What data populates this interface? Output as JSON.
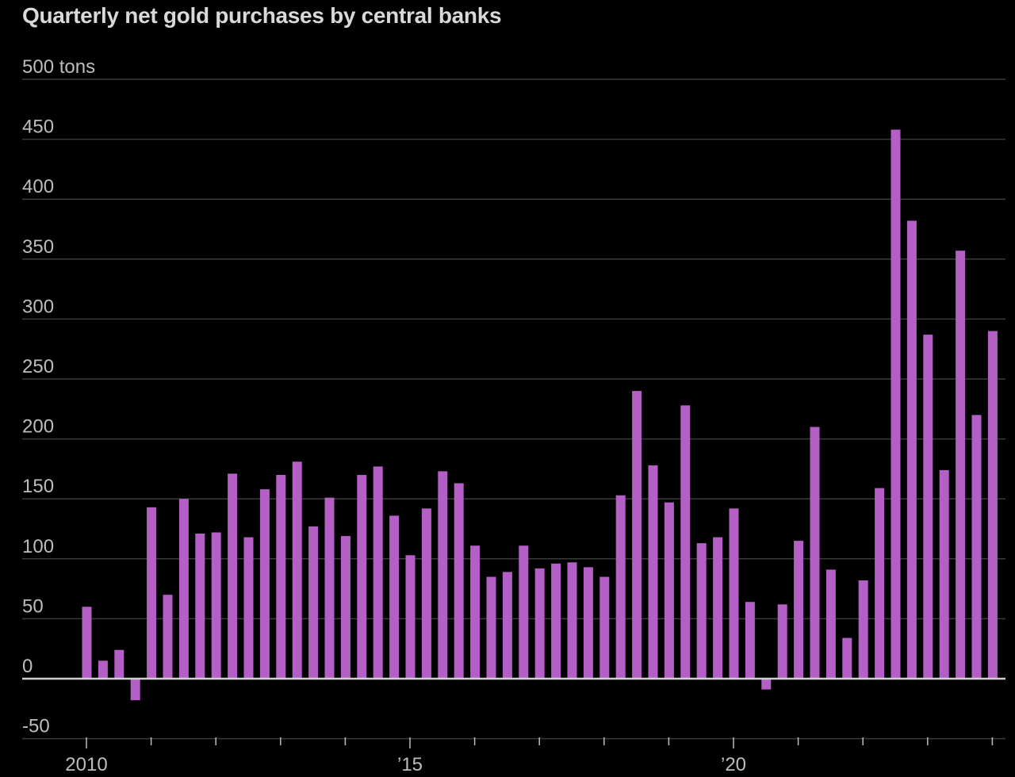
{
  "chart_data": {
    "type": "bar",
    "title": "Quarterly net gold purchases by central banks",
    "ylabel": "",
    "xlabel": "",
    "ylim": [
      -50,
      500
    ],
    "y_ticks": [
      {
        "value": 500,
        "label": "500 tons"
      },
      {
        "value": 450,
        "label": "450"
      },
      {
        "value": 400,
        "label": "400"
      },
      {
        "value": 350,
        "label": "350"
      },
      {
        "value": 300,
        "label": "300"
      },
      {
        "value": 250,
        "label": "250"
      },
      {
        "value": 200,
        "label": "200"
      },
      {
        "value": 150,
        "label": "150"
      },
      {
        "value": 100,
        "label": "100"
      },
      {
        "value": 50,
        "label": "50"
      },
      {
        "value": 0,
        "label": "0"
      },
      {
        "value": -50,
        "label": "-50"
      }
    ],
    "x_ticks": [
      {
        "year": 2010,
        "label": "2010"
      },
      {
        "year": 2015,
        "label": "’15"
      },
      {
        "year": 2020,
        "label": "’20"
      }
    ],
    "start_year": 2010,
    "grid": true,
    "bar_color": "#b35fc6",
    "categories": [
      "2010 Q1",
      "2010 Q2",
      "2010 Q3",
      "2010 Q4",
      "2011 Q1",
      "2011 Q2",
      "2011 Q3",
      "2011 Q4",
      "2012 Q1",
      "2012 Q2",
      "2012 Q3",
      "2012 Q4",
      "2013 Q1",
      "2013 Q2",
      "2013 Q3",
      "2013 Q4",
      "2014 Q1",
      "2014 Q2",
      "2014 Q3",
      "2014 Q4",
      "2015 Q1",
      "2015 Q2",
      "2015 Q3",
      "2015 Q4",
      "2016 Q1",
      "2016 Q2",
      "2016 Q3",
      "2016 Q4",
      "2017 Q1",
      "2017 Q2",
      "2017 Q3",
      "2017 Q4",
      "2018 Q1",
      "2018 Q2",
      "2018 Q3",
      "2018 Q4",
      "2019 Q1",
      "2019 Q2",
      "2019 Q3",
      "2019 Q4",
      "2020 Q1",
      "2020 Q2",
      "2020 Q3",
      "2020 Q4",
      "2021 Q1",
      "2021 Q2",
      "2021 Q3",
      "2021 Q4",
      "2022 Q1",
      "2022 Q2",
      "2022 Q3",
      "2022 Q4",
      "2023 Q1",
      "2023 Q2",
      "2023 Q3",
      "2023 Q4",
      "2024 Q1"
    ],
    "values": [
      60,
      15,
      24,
      -18,
      143,
      70,
      150,
      121,
      122,
      171,
      118,
      158,
      170,
      181,
      127,
      151,
      119,
      170,
      177,
      136,
      103,
      142,
      173,
      163,
      111,
      85,
      89,
      111,
      92,
      96,
      97,
      93,
      85,
      153,
      240,
      178,
      147,
      228,
      113,
      118,
      142,
      64,
      -9,
      62,
      115,
      210,
      91,
      34,
      82,
      159,
      458,
      382,
      287,
      174,
      357,
      220,
      290
    ]
  }
}
